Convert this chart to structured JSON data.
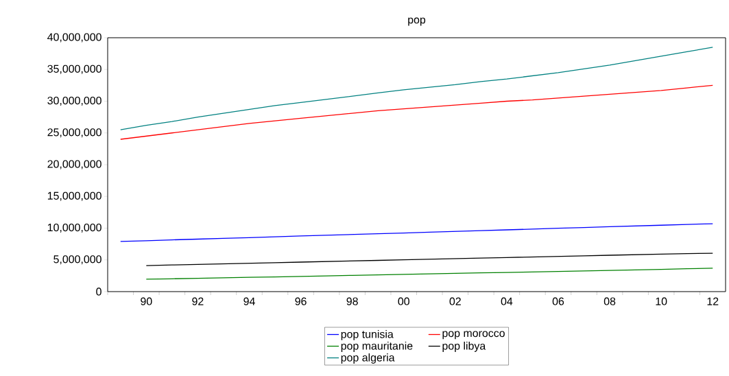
{
  "chart_data": {
    "type": "line",
    "title": "pop",
    "x": [
      1989,
      1990,
      1991,
      1992,
      1993,
      1994,
      1995,
      1996,
      1997,
      1998,
      1999,
      2000,
      2001,
      2002,
      2003,
      2004,
      2005,
      2006,
      2007,
      2008,
      2009,
      2010,
      2011,
      2012
    ],
    "series": [
      {
        "name": "pop tunisia",
        "color": "#0000ff",
        "values": [
          7900000,
          8020000,
          8150000,
          8270000,
          8390000,
          8510000,
          8630000,
          8760000,
          8880000,
          9000000,
          9120000,
          9240000,
          9370000,
          9490000,
          9610000,
          9730000,
          9850000,
          9980000,
          10100000,
          10220000,
          10340000,
          10460000,
          10590000,
          10700000
        ]
      },
      {
        "name": "pop morocco",
        "color": "#ff0000",
        "values": [
          24000000,
          24500000,
          25000000,
          25500000,
          26000000,
          26500000,
          26900000,
          27300000,
          27700000,
          28100000,
          28500000,
          28800000,
          29100000,
          29400000,
          29700000,
          30000000,
          30200000,
          30500000,
          30800000,
          31100000,
          31400000,
          31700000,
          32100000,
          32500000
        ]
      },
      {
        "name": "pop mauritanie",
        "color": "#008000",
        "values": [
          null,
          1950000,
          2020000,
          2100000,
          2170000,
          2250000,
          2320000,
          2400000,
          2480000,
          2560000,
          2630000,
          2710000,
          2790000,
          2870000,
          2950000,
          3020000,
          3100000,
          3180000,
          3260000,
          3340000,
          3420000,
          3500000,
          3600000,
          3700000
        ]
      },
      {
        "name": "pop libya",
        "color": "#000000",
        "values": [
          null,
          4100000,
          4200000,
          4290000,
          4380000,
          4470000,
          4560000,
          4650000,
          4740000,
          4830000,
          4920000,
          5010000,
          5100000,
          5190000,
          5280000,
          5370000,
          5460000,
          5550000,
          5640000,
          5730000,
          5820000,
          5910000,
          5980000,
          6050000
        ]
      },
      {
        "name": "pop algeria",
        "color": "#008080",
        "values": [
          25500000,
          26200000,
          26800000,
          27500000,
          28100000,
          28700000,
          29300000,
          29800000,
          30300000,
          30800000,
          31300000,
          31800000,
          32200000,
          32600000,
          33100000,
          33500000,
          34000000,
          34500000,
          35100000,
          35700000,
          36400000,
          37100000,
          37800000,
          38500000
        ]
      }
    ],
    "xlim": [
      1988.5,
      2012.5
    ],
    "xticks": [
      {
        "value": 1988.5,
        "label": null
      },
      {
        "value": 1989.5,
        "label": null
      },
      {
        "value": 1990,
        "label": "90"
      },
      {
        "value": 1990.5,
        "label": null
      },
      {
        "value": 1991.5,
        "label": null
      },
      {
        "value": 1992,
        "label": "92"
      },
      {
        "value": 1992.5,
        "label": null
      },
      {
        "value": 1993.5,
        "label": null
      },
      {
        "value": 1994,
        "label": "94"
      },
      {
        "value": 1994.5,
        "label": null
      },
      {
        "value": 1995.5,
        "label": null
      },
      {
        "value": 1996,
        "label": "96"
      },
      {
        "value": 1996.5,
        "label": null
      },
      {
        "value": 1997.5,
        "label": null
      },
      {
        "value": 1998,
        "label": "98"
      },
      {
        "value": 1998.5,
        "label": null
      },
      {
        "value": 1999.5,
        "label": null
      },
      {
        "value": 2000,
        "label": "00"
      },
      {
        "value": 2000.5,
        "label": null
      },
      {
        "value": 2001.5,
        "label": null
      },
      {
        "value": 2002,
        "label": "02"
      },
      {
        "value": 2002.5,
        "label": null
      },
      {
        "value": 2003.5,
        "label": null
      },
      {
        "value": 2004,
        "label": "04"
      },
      {
        "value": 2004.5,
        "label": null
      },
      {
        "value": 2005.5,
        "label": null
      },
      {
        "value": 2006,
        "label": "06"
      },
      {
        "value": 2006.5,
        "label": null
      },
      {
        "value": 2007.5,
        "label": null
      },
      {
        "value": 2008,
        "label": "08"
      },
      {
        "value": 2008.5,
        "label": null
      },
      {
        "value": 2009.5,
        "label": null
      },
      {
        "value": 2010,
        "label": "10"
      },
      {
        "value": 2010.5,
        "label": null
      },
      {
        "value": 2011.5,
        "label": null
      },
      {
        "value": 2012,
        "label": "12"
      }
    ],
    "ylim": [
      0,
      40000000
    ],
    "yticks": [
      {
        "value": 0,
        "label": "0"
      },
      {
        "value": 5000000,
        "label": "5,000,000"
      },
      {
        "value": 10000000,
        "label": "10,000,000"
      },
      {
        "value": 15000000,
        "label": "15,000,000"
      },
      {
        "value": 20000000,
        "label": "20,000,000"
      },
      {
        "value": 25000000,
        "label": "25,000,000"
      },
      {
        "value": 30000000,
        "label": "30,000,000"
      },
      {
        "value": 35000000,
        "label": "35,000,000"
      },
      {
        "value": 40000000,
        "label": "40,000,000"
      }
    ],
    "legend": "bottom"
  }
}
